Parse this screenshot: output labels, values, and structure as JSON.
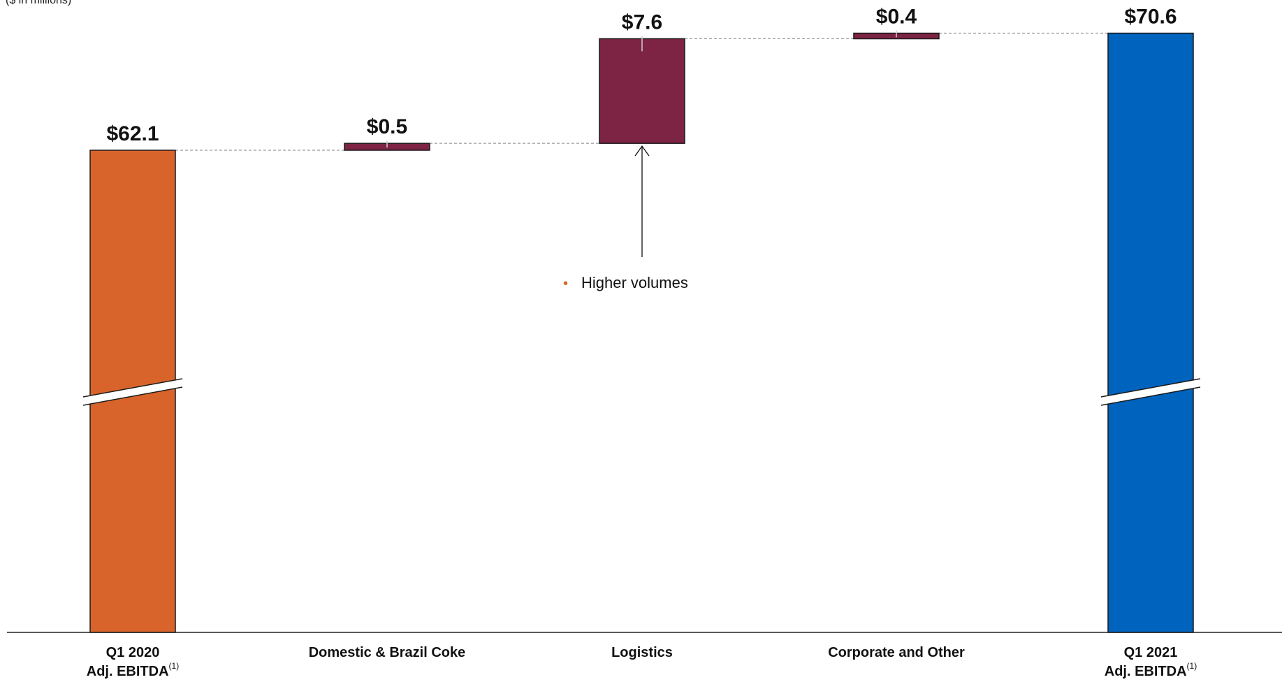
{
  "unit_note": "($ in millions)",
  "colors": {
    "start_bar": "#D9642B",
    "delta_bar": "#7D2344",
    "end_bar": "#0063BE",
    "connector": "#9a9a9a",
    "bullet": "#D9642B"
  },
  "chart_data": {
    "type": "bar",
    "subtype": "waterfall",
    "categories": [
      "Q1 2020\nAdj. EBITDA(1)",
      "Domestic & Brazil Coke",
      "Logistics",
      "Corporate and Other",
      "Q1 2021\nAdj. EBITDA(1)"
    ],
    "category_labels": [
      {
        "line1": "Q1 2020",
        "line2": "Adj. EBITDA",
        "sup": "(1)"
      },
      {
        "line1": "Domestic & Brazil Coke",
        "line2": "",
        "sup": ""
      },
      {
        "line1": "Logistics",
        "line2": "",
        "sup": ""
      },
      {
        "line1": "Corporate and Other",
        "line2": "",
        "sup": ""
      },
      {
        "line1": "Q1 2021",
        "line2": "Adj. EBITDA",
        "sup": "(1)"
      }
    ],
    "bars": [
      {
        "kind": "total",
        "value": 62.1,
        "label": "$62.1",
        "axis_break": true
      },
      {
        "kind": "delta",
        "value": 0.5,
        "label": "$0.5"
      },
      {
        "kind": "delta",
        "value": 7.6,
        "label": "$7.6"
      },
      {
        "kind": "delta",
        "value": 0.4,
        "label": "$0.4"
      },
      {
        "kind": "total",
        "value": 70.6,
        "label": "$70.6",
        "axis_break": true
      }
    ],
    "annotations": [
      {
        "category": "Logistics",
        "text": "Higher volumes",
        "bullet": "•"
      }
    ],
    "xlabel": "",
    "ylabel": "",
    "grid": false,
    "legend": "none"
  }
}
